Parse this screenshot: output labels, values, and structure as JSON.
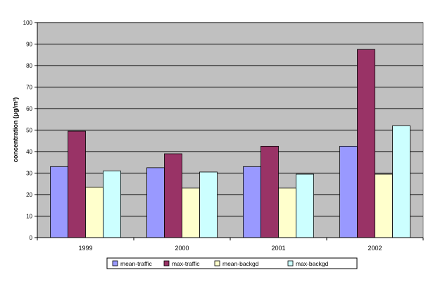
{
  "chart_data": {
    "type": "bar",
    "title": "",
    "xlabel": "",
    "ylabel": "concentration (µg/m³)",
    "ylim": [
      0,
      100
    ],
    "yticks": [
      0,
      10,
      20,
      30,
      40,
      50,
      60,
      70,
      80,
      90,
      100
    ],
    "categories": [
      "1999",
      "2000",
      "2001",
      "2002"
    ],
    "series": [
      {
        "name": "mean-traffic",
        "color": "#9999ff",
        "values": [
          33,
          32.5,
          33,
          42.5
        ]
      },
      {
        "name": "max-traffic",
        "color": "#993366",
        "values": [
          49.5,
          39,
          42.5,
          87.5
        ]
      },
      {
        "name": "mean-backgd",
        "color": "#ffffcc",
        "values": [
          23.5,
          23,
          23,
          29.5
        ]
      },
      {
        "name": "max-backgd",
        "color": "#ccffff",
        "values": [
          31,
          30.5,
          29.5,
          52
        ]
      }
    ],
    "plot_background": "#c0c0c0",
    "grid": true,
    "legend_position": "bottom"
  }
}
